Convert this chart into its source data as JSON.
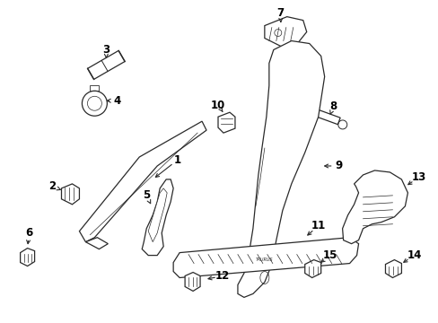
{
  "bg_color": "#ffffff",
  "line_color": "#2a2a2a",
  "label_color": "#000000",
  "figsize": [
    4.89,
    3.6
  ],
  "dpi": 100,
  "label_fontsize": 8.5
}
